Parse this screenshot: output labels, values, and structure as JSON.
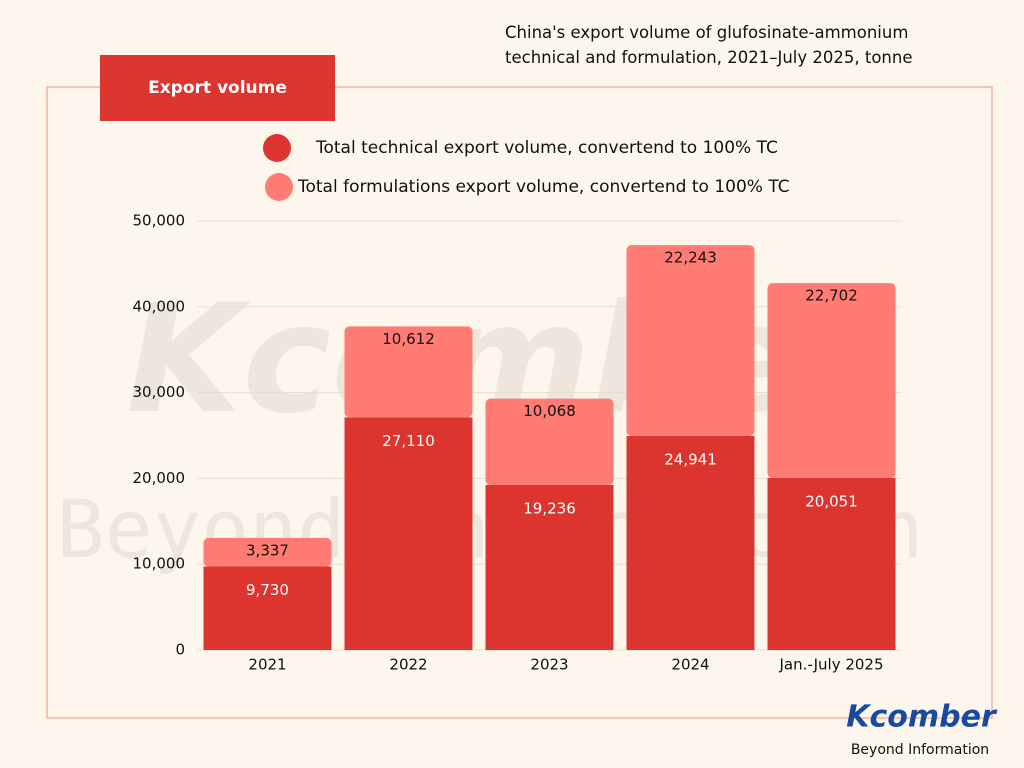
{
  "chart_data": {
    "type": "stacked-bar",
    "title": "China's export volume of glufosinate-ammonium technical and formulation, 2021–July 2025, tonne",
    "subtitle": "Export volume",
    "categories": [
      "2021",
      "2022",
      "2023",
      "2024",
      "Jan.-July 2025"
    ],
    "series": [
      {
        "name": "Total technical export volume, convertend to 100% TC",
        "color": "#dc3530",
        "values": [
          9730,
          27110,
          19236,
          24941,
          20051
        ],
        "value_labels": [
          "9,730",
          "27,110",
          "19,236",
          "24,941",
          "20,051"
        ]
      },
      {
        "name": "Total formulations export volume, convertend to 100% TC",
        "color": "#ff7b74",
        "values": [
          3337,
          10612,
          10068,
          22243,
          22702
        ],
        "value_labels": [
          "3,337",
          "10,612",
          "10,068",
          "22,243",
          "22,702"
        ]
      }
    ],
    "ylim": [
      0,
      50000
    ],
    "yticks": [
      0,
      {
        "value": 10000,
        "label": "10,000"
      },
      {
        "value": 20000,
        "label": "20,000"
      },
      {
        "value": 30000,
        "label": "30,000"
      },
      {
        "value": 40000,
        "label": "40,000"
      },
      {
        "value": 50000,
        "label": "50,000"
      }
    ],
    "grid": true
  },
  "logo": {
    "name": "Kcomber",
    "tagline": "Beyond Information"
  }
}
